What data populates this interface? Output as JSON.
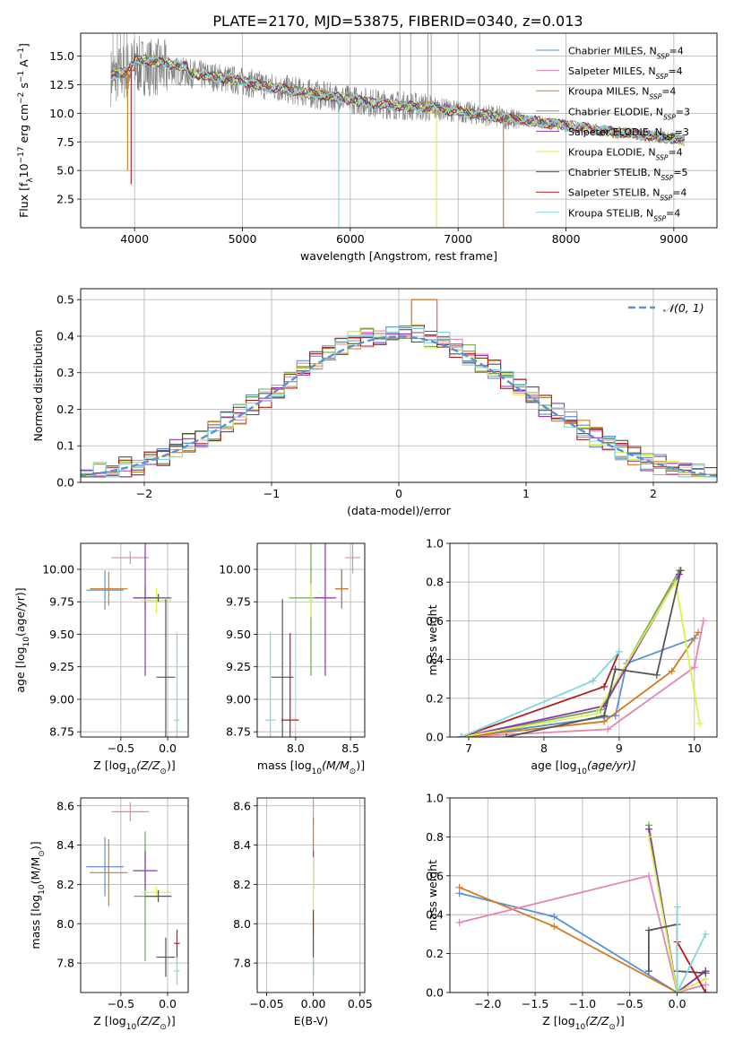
{
  "figure": {
    "suptitle": "PLATE=2170, MJD=53875, FIBERID=0340, z=0.013"
  },
  "colors": [
    "#5b8fd6",
    "#e285b8",
    "#d37a1f",
    "#6ca84e",
    "#8f36b4",
    "#d9f24a",
    "#555555",
    "#b11d1d",
    "#7fd6df"
  ],
  "chart_data": [
    {
      "id": "spectrum",
      "type": "line",
      "xlabel": "wavelength [Angstrom, rest frame]",
      "ylabel": "Flux [f",
      "ylabel_sub": "λ",
      "ylabel_tail": "10",
      "ylabel_exp": "−17",
      "ylabel_tail2": " erg cm",
      "ylabel_exp2": "−2",
      "ylabel_tail3": " s",
      "ylabel_exp3": "−1",
      "ylabel_tail4": " A",
      "ylabel_exp4": "−1",
      "ylabel_end": "]",
      "xlim": [
        3500,
        9400
      ],
      "ylim": [
        0,
        17
      ],
      "xticks": [
        4000,
        5000,
        6000,
        7000,
        8000,
        9000
      ],
      "yticks": [
        2.5,
        5.0,
        7.5,
        10.0,
        12.5,
        15.0
      ],
      "continuum": {
        "x": [
          3780,
          3900,
          4000,
          4200,
          4500,
          4800,
          5100,
          5400,
          5700,
          6000,
          6300,
          6600,
          6900,
          7200,
          7500,
          7800,
          8100,
          8400,
          8700,
          9000,
          9100
        ],
        "y": [
          13.2,
          13.6,
          14.2,
          14.0,
          13.5,
          13.1,
          12.6,
          12.1,
          11.6,
          11.2,
          10.8,
          10.6,
          10.3,
          9.9,
          9.5,
          9.2,
          8.8,
          8.4,
          8.1,
          7.8,
          7.6
        ]
      },
      "legend": [
        {
          "name": "Chabrier MILES, N",
          "sub": "SSP",
          "tail": "=4"
        },
        {
          "name": "Salpeter MILES, N",
          "sub": "SSP",
          "tail": "=4"
        },
        {
          "name": "Kroupa MILES, N",
          "sub": "SSP",
          "tail": "=4"
        },
        {
          "name": "Chabrier ELODIE, N",
          "sub": "SSP",
          "tail": "=3"
        },
        {
          "name": "Salpeter ELODIE, N",
          "sub": "SSP",
          "tail": "=3"
        },
        {
          "name": "Kroupa ELODIE, N",
          "sub": "SSP",
          "tail": "=4"
        },
        {
          "name": "Chabrier STELIB, N",
          "sub": "SSP",
          "tail": "=5"
        },
        {
          "name": "Salpeter STELIB, N",
          "sub": "SSP",
          "tail": "=4"
        },
        {
          "name": "Kroupa STELIB, N",
          "sub": "SSP",
          "tail": "=4"
        }
      ]
    },
    {
      "id": "residuals",
      "type": "histogram",
      "xlabel": "(data-model)/error",
      "ylabel": "Normed distribution",
      "xlim": [
        -2.5,
        2.5
      ],
      "ylim": [
        0,
        0.53
      ],
      "xticks": [
        -2,
        -1,
        0,
        1,
        2
      ],
      "yticks": [
        0.0,
        0.1,
        0.2,
        0.3,
        0.4,
        0.5
      ],
      "bin_width": 0.1,
      "gaussian_label": "𝒩(0, 1)",
      "gaussian_color": "#5b8fd6",
      "spike": {
        "x": 0.2,
        "y": 0.5
      }
    },
    {
      "id": "age_vs_Z",
      "type": "errorbar",
      "xlabel": "Z [log",
      "xlabel_sub": "10",
      "xlabel_tail": "(Z/Z",
      "xlabel_sub2": "⊙",
      "xlabel_end": ")]",
      "ylabel": "age  [log",
      "ylabel_sub": "10",
      "ylabel_tail": "(age/yr)]",
      "xlim": [
        -0.93,
        0.22
      ],
      "ylim": [
        8.71,
        10.2
      ],
      "xticks": [
        -0.5,
        0.0
      ],
      "yticks": [
        8.75,
        9.0,
        9.25,
        9.5,
        9.75,
        10.0
      ],
      "points": [
        {
          "x": -0.67,
          "y": 9.84,
          "xerr": 0.2,
          "yerr": 0.15,
          "c": 0
        },
        {
          "x": -0.4,
          "y": 10.09,
          "xerr": 0.2,
          "yerr": 0.05,
          "c": 1
        },
        {
          "x": -0.63,
          "y": 9.85,
          "xerr": 0.2,
          "yerr": 0.13,
          "c": 2
        },
        {
          "x": -0.24,
          "y": 9.78,
          "xerr": 0.12,
          "yerr": 0.1,
          "c": 3
        },
        {
          "x": -0.24,
          "y": 9.78,
          "xerr": 0.13,
          "yerr": 0.6,
          "c": 4
        },
        {
          "x": -0.12,
          "y": 9.76,
          "xerr": 0.16,
          "yerr": 0.1,
          "c": 5
        },
        {
          "x": -0.1,
          "y": 9.78,
          "xerr": 0.14,
          "yerr": 0.03,
          "c": 6
        },
        {
          "x": -0.02,
          "y": 9.17,
          "xerr": 0.1,
          "yerr": 0.6,
          "c": 6
        },
        {
          "x": 0.1,
          "y": 8.84,
          "xerr": 0.03,
          "yerr": 0.67,
          "c": 8
        }
      ]
    },
    {
      "id": "age_vs_mass",
      "type": "errorbar",
      "xlabel": "mass [log",
      "xlabel_sub": "10",
      "xlabel_tail": "(M/M",
      "xlabel_sub2": "⊙",
      "xlabel_end": ")]",
      "xlim": [
        7.65,
        8.63
      ],
      "ylim": [
        8.71,
        10.2
      ],
      "xticks": [
        8.0,
        8.5
      ],
      "yticks": [
        8.75,
        9.0,
        9.25,
        9.5,
        9.75,
        10.0
      ],
      "points": [
        {
          "x": 8.52,
          "y": 10.09,
          "xerr": 0.07,
          "yerr": 0.12,
          "c": 1
        },
        {
          "x": 8.42,
          "y": 9.85,
          "xerr": 0.06,
          "yerr": 0.15,
          "c": 0
        },
        {
          "x": 8.42,
          "y": 9.85,
          "xerr": 0.06,
          "yerr": 0.15,
          "c": 2
        },
        {
          "x": 8.14,
          "y": 9.78,
          "xerr": 0.2,
          "yerr": 0.6,
          "c": 3
        },
        {
          "x": 8.27,
          "y": 9.78,
          "xerr": 0.1,
          "yerr": 0.6,
          "c": 4
        },
        {
          "x": 8.14,
          "y": 9.76,
          "xerr": 0.02,
          "yerr": 0.13,
          "c": 5
        },
        {
          "x": 7.88,
          "y": 9.17,
          "xerr": 0.1,
          "yerr": 0.6,
          "c": 6
        },
        {
          "x": 7.95,
          "y": 8.84,
          "xerr": 0.08,
          "yerr": 0.67,
          "c": 7
        },
        {
          "x": 7.77,
          "y": 8.84,
          "xerr": 0.05,
          "yerr": 0.68,
          "c": 8
        }
      ]
    },
    {
      "id": "weight_vs_age",
      "type": "line",
      "xlabel": "age  [log",
      "xlabel_sub": "10",
      "xlabel_tail": "(age/yr)]",
      "ylabel": "mass weight",
      "xlim": [
        6.75,
        10.3
      ],
      "ylim": [
        0,
        1
      ],
      "xticks": [
        7,
        8,
        9,
        10
      ],
      "yticks": [
        0.0,
        0.2,
        0.4,
        0.6,
        0.8,
        1.0
      ],
      "series": [
        {
          "c": 0,
          "x": [
            6.9,
            8.95,
            9.1,
            10.0
          ],
          "y": [
            0.0,
            0.11,
            0.38,
            0.51
          ]
        },
        {
          "c": 1,
          "x": [
            6.9,
            8.85,
            10.0,
            10.12
          ],
          "y": [
            0.0,
            0.04,
            0.36,
            0.6
          ]
        },
        {
          "c": 2,
          "x": [
            6.9,
            8.8,
            9.7,
            10.05
          ],
          "y": [
            0.0,
            0.08,
            0.34,
            0.54
          ]
        },
        {
          "c": 3,
          "x": [
            6.9,
            8.75,
            9.8
          ],
          "y": [
            0.0,
            0.14,
            0.86
          ]
        },
        {
          "c": 4,
          "x": [
            6.9,
            8.8,
            9.8
          ],
          "y": [
            0.0,
            0.16,
            0.84
          ]
        },
        {
          "c": 5,
          "x": [
            6.9,
            8.7,
            9.75,
            10.07
          ],
          "y": [
            0.0,
            0.12,
            0.8,
            0.07
          ]
        },
        {
          "c": 6,
          "x": [
            7.5,
            8.8,
            8.95,
            9.5,
            9.82
          ],
          "y": [
            0.0,
            0.11,
            0.35,
            0.32,
            0.86
          ]
        },
        {
          "c": 7,
          "x": [
            6.9,
            8.8,
            9.0
          ],
          "y": [
            0.0,
            0.26,
            0.44
          ]
        },
        {
          "c": 8,
          "x": [
            6.9,
            8.65,
            9.0
          ],
          "y": [
            0.0,
            0.29,
            0.44
          ]
        }
      ]
    },
    {
      "id": "mass_vs_Z",
      "type": "errorbar",
      "xlabel": "Z [log",
      "xlabel_sub": "10",
      "xlabel_tail": "(Z/Z",
      "xlabel_sub2": "⊙",
      "xlabel_end": ")]",
      "ylabel": "mass [log",
      "ylabel_sub": "10",
      "ylabel_tail": "(M/M",
      "ylabel_sub2": "⊙",
      "ylabel_end": ")]",
      "xlim": [
        -0.93,
        0.22
      ],
      "ylim": [
        7.65,
        8.64
      ],
      "xticks": [
        -0.5,
        0.0
      ],
      "yticks": [
        7.8,
        8.0,
        8.2,
        8.4,
        8.6
      ],
      "points": [
        {
          "x": -0.67,
          "y": 8.29,
          "xerr": 0.2,
          "yerr": 0.15,
          "c": 0
        },
        {
          "x": -0.4,
          "y": 8.57,
          "xerr": 0.2,
          "yerr": 0.05,
          "c": 1
        },
        {
          "x": -0.63,
          "y": 8.26,
          "xerr": 0.2,
          "yerr": 0.17,
          "c": 2
        },
        {
          "x": -0.24,
          "y": 8.14,
          "xerr": 0.12,
          "yerr": 0.33,
          "c": 3
        },
        {
          "x": -0.24,
          "y": 8.27,
          "xerr": 0.13,
          "yerr": 0.1,
          "c": 4
        },
        {
          "x": -0.12,
          "y": 8.16,
          "xerr": 0.16,
          "yerr": 0.03,
          "c": 5
        },
        {
          "x": -0.1,
          "y": 8.14,
          "xerr": 0.14,
          "yerr": 0.03,
          "c": 6
        },
        {
          "x": -0.02,
          "y": 7.83,
          "xerr": 0.1,
          "yerr": 0.1,
          "c": 6
        },
        {
          "x": 0.1,
          "y": 7.9,
          "xerr": 0.03,
          "yerr": 0.07,
          "c": 7
        },
        {
          "x": 0.1,
          "y": 7.76,
          "xerr": 0.03,
          "yerr": 0.07,
          "c": 8
        }
      ]
    },
    {
      "id": "mass_vs_EBV",
      "type": "errorbar",
      "xlabel": "E(B-V)",
      "xlim": [
        -0.06,
        0.055
      ],
      "ylim": [
        7.65,
        8.64
      ],
      "xticks": [
        -0.05,
        0.0,
        0.05
      ],
      "yticks": [
        7.8,
        8.0,
        8.2,
        8.4,
        8.6
      ],
      "points": [
        {
          "x": 0.0,
          "y": 8.57,
          "xerr": 0.0,
          "yerr": 0.07,
          "c": 1
        },
        {
          "x": 0.0,
          "y": 8.42,
          "xerr": 0.0,
          "yerr": 0.12,
          "c": 2
        },
        {
          "x": 0.0,
          "y": 8.27,
          "xerr": 0.0,
          "yerr": 0.1,
          "c": 4
        },
        {
          "x": 0.0,
          "y": 8.14,
          "xerr": 0.0,
          "yerr": 0.2,
          "c": 5
        },
        {
          "x": 0.0,
          "y": 8.0,
          "xerr": 0.0,
          "yerr": 0.07,
          "c": 7
        },
        {
          "x": 0.0,
          "y": 7.83,
          "xerr": 0.0,
          "yerr": 0.1,
          "c": 6
        },
        {
          "x": 0.0,
          "y": 7.76,
          "xerr": 0.0,
          "yerr": 0.07,
          "c": 8
        }
      ]
    },
    {
      "id": "weight_vs_Z",
      "type": "line",
      "xlabel": "Z [log",
      "xlabel_sub": "10",
      "xlabel_tail": "(Z/Z",
      "xlabel_sub2": "⊙",
      "xlabel_end": ")]",
      "ylabel": "mass weight",
      "xlim": [
        -2.4,
        0.42
      ],
      "ylim": [
        0,
        1
      ],
      "xticks": [
        -2.0,
        -1.5,
        -1.0,
        -0.5,
        0.0
      ],
      "yticks": [
        0.0,
        0.2,
        0.4,
        0.6,
        0.8,
        1.0
      ],
      "series": [
        {
          "c": 0,
          "x": [
            -2.3,
            -1.3,
            0.0,
            0.3
          ],
          "y": [
            0.51,
            0.39,
            0.0,
            0.11
          ]
        },
        {
          "c": 2,
          "x": [
            -2.3,
            -1.3,
            0.0,
            0.3
          ],
          "y": [
            0.54,
            0.34,
            0.0,
            0.11
          ]
        },
        {
          "c": 1,
          "x": [
            -2.3,
            -0.3,
            0.0,
            0.3
          ],
          "y": [
            0.36,
            0.6,
            0.0,
            0.04
          ]
        },
        {
          "c": 3,
          "x": [
            -0.3,
            0.0,
            0.3
          ],
          "y": [
            0.86,
            0.0,
            0.11
          ]
        },
        {
          "c": 4,
          "x": [
            -0.3,
            0.0,
            0.3
          ],
          "y": [
            0.84,
            0.0,
            0.11
          ]
        },
        {
          "c": 5,
          "x": [
            -0.3,
            0.0,
            0.3
          ],
          "y": [
            0.8,
            0.0,
            0.07
          ]
        },
        {
          "c": 6,
          "x": [
            -0.3,
            -0.3,
            0.0,
            0.0,
            0.3
          ],
          "y": [
            0.11,
            0.32,
            0.35,
            0.11,
            0.1
          ]
        },
        {
          "c": 7,
          "x": [
            0.0,
            0.3
          ],
          "y": [
            0.26,
            0.0
          ]
        },
        {
          "c": 8,
          "x": [
            0.0,
            0.0,
            0.3
          ],
          "y": [
            0.44,
            0.0,
            0.3
          ]
        }
      ]
    }
  ]
}
